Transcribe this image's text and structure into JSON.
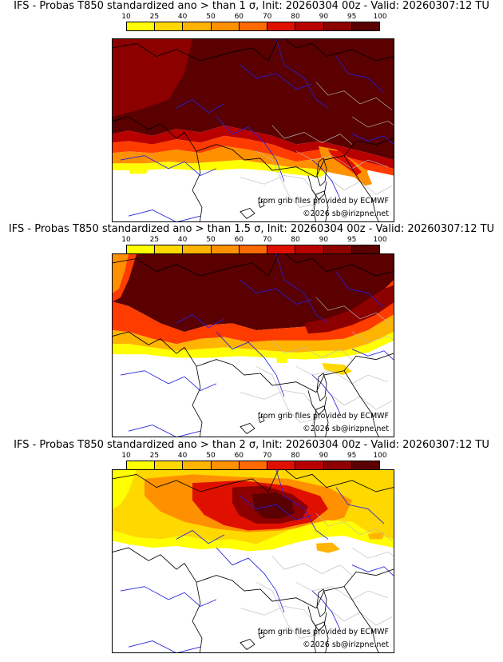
{
  "colorbar": {
    "levels": [
      "10",
      "25",
      "40",
      "50",
      "60",
      "70",
      "80",
      "90",
      "95",
      "100"
    ],
    "colors": [
      "#ffff00",
      "#ffd800",
      "#ffb400",
      "#ff9000",
      "#ff6a00",
      "#ff3c00",
      "#e01000",
      "#b80000",
      "#8c0000",
      "#5a0000"
    ]
  },
  "map_colors": {
    "border": "#000000",
    "river": "#2020e0",
    "region": "#bbbbbb"
  },
  "panels": [
    {
      "title": "IFS - Probas T850  standardized ano > than 1 σ, Init: 20260304 00z - Valid: 20260307:12 TU",
      "credit": "from grib files provided by ECMWF",
      "copyright": "©2026 sb@irizpne.net"
    },
    {
      "title": "IFS - Probas T850  standardized ano > than 1.5 σ, Init: 20260304 00z - Valid: 20260307:12 TU",
      "credit": "from grib files provided by ECMWF",
      "copyright": "©2026 sb@irizpne.net"
    },
    {
      "title": "IFS - Probas T850  standardized ano > than 2 σ, Init: 20260304 00z - Valid: 20260307:12 TU",
      "credit": "from grib files provided by ECMWF",
      "copyright": "©2026 sb@irizpne.net"
    }
  ]
}
